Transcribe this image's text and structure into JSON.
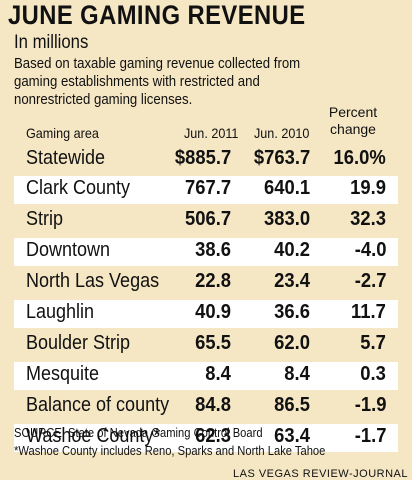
{
  "title": "JUNE GAMING REVENUE",
  "subtitle": "In millions",
  "description_lines": [
    "Based on taxable gaming revenue collected from",
    "gaming establishments with restricted and",
    "nonrestricted gaming licenses."
  ],
  "table": {
    "headers": {
      "area": "Gaming area",
      "jun_2011": "Jun. 2011",
      "jun_2010": "Jun. 2010",
      "pct_line1": "Percent",
      "pct_line2": "change"
    },
    "rows": [
      {
        "area": "Statewide",
        "jun_2011": "$885.7",
        "jun_2010": "$763.7",
        "pct": "16.0%"
      },
      {
        "area": "Clark County",
        "jun_2011": "767.7",
        "jun_2010": "640.1",
        "pct": "19.9"
      },
      {
        "area": "Strip",
        "jun_2011": "506.7",
        "jun_2010": "383.0",
        "pct": "32.3"
      },
      {
        "area": "Downtown",
        "jun_2011": "38.6",
        "jun_2010": "40.2",
        "pct": "-4.0"
      },
      {
        "area": "North Las Vegas",
        "jun_2011": "22.8",
        "jun_2010": "23.4",
        "pct": "-2.7"
      },
      {
        "area": "Laughlin",
        "jun_2011": "40.9",
        "jun_2010": "36.6",
        "pct": "11.7"
      },
      {
        "area": "Boulder Strip",
        "jun_2011": "65.5",
        "jun_2010": "62.0",
        "pct": "5.7"
      },
      {
        "area": "Mesquite",
        "jun_2011": "8.4",
        "jun_2010": "8.4",
        "pct": "0.3"
      },
      {
        "area": "Balance of county",
        "jun_2011": "84.8",
        "jun_2010": "86.5",
        "pct": "-1.9"
      },
      {
        "area": "Washoe County*",
        "jun_2011": "62.3",
        "jun_2010": "63.4",
        "pct": "-1.7"
      }
    ]
  },
  "source": "SOURCE: State of Nevada Gaming Control Board",
  "footnote": "*Washoe County includes Reno, Sparks and North Lake Tahoe",
  "credit": "LAS VEGAS REVIEW-JOURNAL",
  "colors": {
    "background": "#f5e6c4",
    "row_highlight": "#ffffff",
    "text": "#111111"
  }
}
